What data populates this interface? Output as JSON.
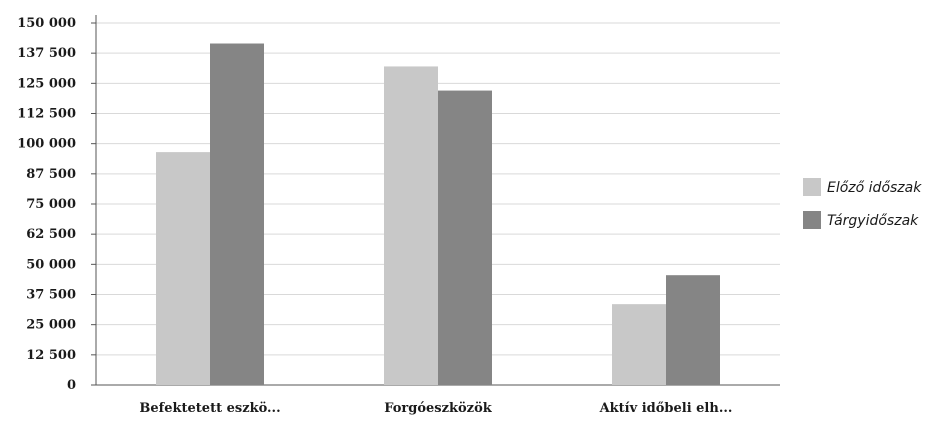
{
  "chart_data": {
    "type": "bar",
    "title": "",
    "xlabel": "",
    "ylabel": "",
    "categories": [
      "Befektetett eszkö...",
      "Forgóeszközök",
      "Aktív időbeli elh..."
    ],
    "series": [
      {
        "name": "Előző időszak",
        "color": "#c8c8c8",
        "values": [
          96500,
          132000,
          33500
        ]
      },
      {
        "name": "Tárgyidőszak",
        "color": "#858585",
        "values": [
          141500,
          122000,
          45500
        ]
      }
    ],
    "yticks": [
      0,
      12500,
      25000,
      37500,
      50000,
      62500,
      75000,
      87500,
      100000,
      112500,
      125000,
      137500,
      150000
    ],
    "ytick_labels": [
      "0",
      "12 500",
      "25 000",
      "37 500",
      "50 000",
      "62 500",
      "75 000",
      "87 500",
      "100 000",
      "112 500",
      "125 000",
      "137 500",
      "150 000"
    ],
    "ylim": [
      0,
      150000
    ],
    "grid": true,
    "legend_position": "right"
  }
}
